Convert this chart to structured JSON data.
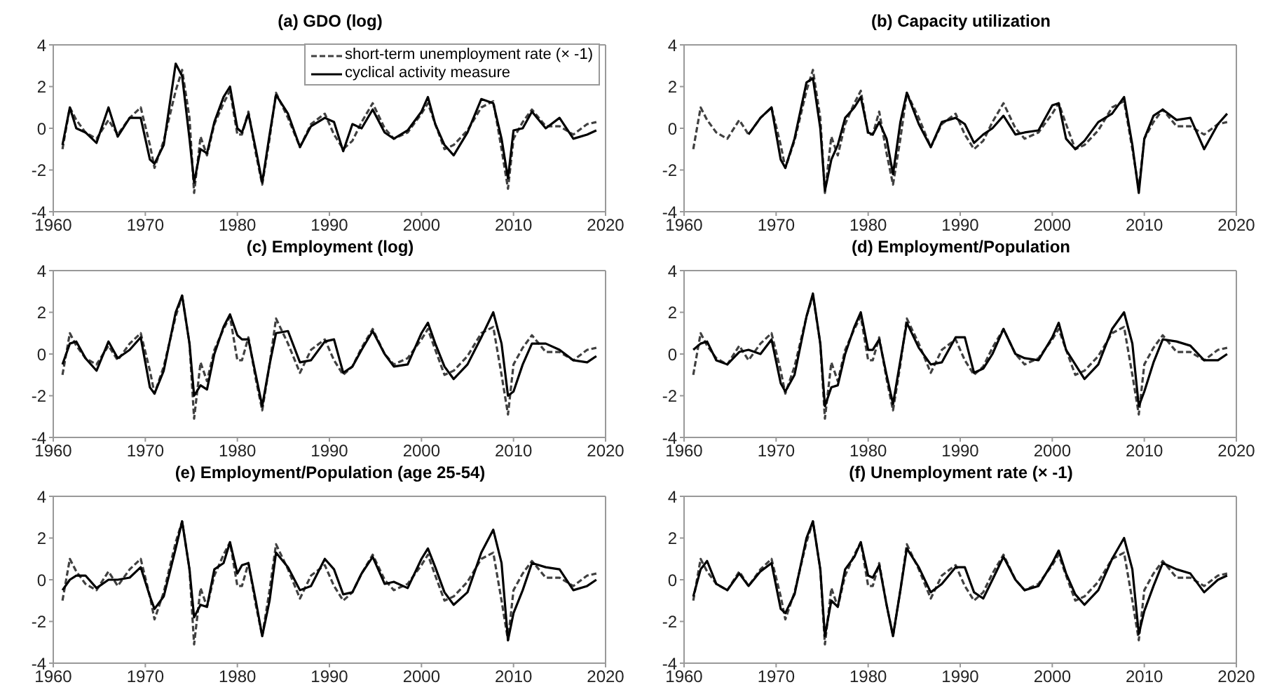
{
  "chart_data": [
    {
      "type": "line",
      "title": "(a) GDO (log)",
      "x": [
        1961,
        1961.8,
        1962.5,
        1963.5,
        1964.7,
        1966,
        1967,
        1968.3,
        1969.5,
        1970.5,
        1971,
        1972,
        1973.3,
        1974,
        1974.8,
        1975.3,
        1976,
        1976.7,
        1977.5,
        1978.5,
        1979.2,
        1980,
        1980.5,
        1981.2,
        1982,
        1982.7,
        1983.5,
        1984.2,
        1985.5,
        1986.8,
        1988,
        1989.5,
        1990.5,
        1991.5,
        1992.5,
        1993.5,
        1994.7,
        1996,
        1997,
        1998.5,
        2000,
        2000.7,
        2001.5,
        2002.5,
        2003.5,
        2005,
        2006.5,
        2007.8,
        2008.7,
        2009.4,
        2010,
        2011,
        2012,
        2013.5,
        2015,
        2016.5,
        2018,
        2019
      ],
      "xlim": [
        1960,
        2020
      ],
      "xticks": [
        1960,
        1970,
        1980,
        1990,
        2000,
        2010,
        2020
      ],
      "ylim": [
        -4,
        4
      ],
      "yticks": [
        -4,
        -2,
        0,
        2,
        4
      ],
      "legend": "top right",
      "series": [
        {
          "name": "short-term unemployment rate (× -1)",
          "color": "#404040",
          "line_style": "dashed",
          "values": [
            -1.0,
            1.0,
            0.4,
            -0.2,
            -0.5,
            0.4,
            -0.3,
            0.5,
            1.0,
            -0.8,
            -1.9,
            -0.6,
            1.8,
            2.8,
            0.5,
            -3.1,
            -0.4,
            -1.3,
            0.2,
            1.2,
            1.8,
            -0.3,
            -0.3,
            0.8,
            -1.2,
            -2.7,
            -0.5,
            1.7,
            0.5,
            -0.9,
            0.2,
            0.7,
            -0.3,
            -1.0,
            -0.6,
            0.3,
            1.2,
            0.0,
            -0.5,
            -0.2,
            0.7,
            1.2,
            0.2,
            -1.0,
            -0.8,
            -0.1,
            1.0,
            1.3,
            -1.0,
            -2.9,
            -0.5,
            0.3,
            0.9,
            0.1,
            0.1,
            -0.3,
            0.2,
            0.3
          ]
        },
        {
          "name": "cyclical activity measure",
          "color": "#000000",
          "line_style": "solid",
          "values": [
            -0.8,
            1.0,
            0.0,
            -0.2,
            -0.7,
            1.0,
            -0.4,
            0.5,
            0.5,
            -1.5,
            -1.7,
            -0.8,
            3.1,
            2.5,
            -0.5,
            -2.6,
            -1.0,
            -1.2,
            0.3,
            1.5,
            2.0,
            0.0,
            -0.2,
            0.7,
            -1.0,
            -2.6,
            -0.3,
            1.6,
            0.7,
            -0.9,
            0.1,
            0.5,
            0.3,
            -1.1,
            0.2,
            0.0,
            0.9,
            -0.2,
            -0.5,
            -0.1,
            0.8,
            1.5,
            0.2,
            -0.8,
            -1.3,
            -0.2,
            1.4,
            1.2,
            -0.5,
            -2.4,
            -0.1,
            0.0,
            0.8,
            0.0,
            0.5,
            -0.5,
            -0.3,
            -0.1
          ]
        }
      ]
    },
    {
      "type": "line",
      "title": "(b) Capacity utilization",
      "x": [
        1961,
        1961.8,
        1962.5,
        1963.5,
        1964.7,
        1966,
        1967,
        1968.3,
        1969.5,
        1970.5,
        1971,
        1972,
        1973.3,
        1974,
        1974.8,
        1975.3,
        1976,
        1976.7,
        1977.5,
        1978.5,
        1979.2,
        1980,
        1980.5,
        1981.2,
        1982,
        1982.7,
        1983.5,
        1984.2,
        1985.5,
        1986.8,
        1988,
        1989.5,
        1990.5,
        1991.5,
        1992.5,
        1993.5,
        1994.7,
        1996,
        1997,
        1998.5,
        2000,
        2000.7,
        2001.5,
        2002.5,
        2003.5,
        2005,
        2006.5,
        2007.8,
        2008.7,
        2009.4,
        2010,
        2011,
        2012,
        2013.5,
        2015,
        2016.5,
        2018,
        2019
      ],
      "xlim": [
        1960,
        2020
      ],
      "xticks": [
        1960,
        1970,
        1980,
        1990,
        2000,
        2010,
        2020
      ],
      "ylim": [
        -4,
        4
      ],
      "yticks": [
        -4,
        -2,
        0,
        2,
        4
      ],
      "series": [
        {
          "color": "#404040",
          "line_style": "dashed",
          "values": [
            -1.0,
            1.0,
            0.4,
            -0.2,
            -0.5,
            0.4,
            -0.3,
            0.5,
            1.0,
            -0.8,
            -1.9,
            -0.6,
            1.8,
            2.8,
            0.5,
            -3.1,
            -0.4,
            -1.3,
            0.2,
            1.2,
            1.8,
            -0.3,
            -0.3,
            0.8,
            -1.2,
            -2.7,
            -0.5,
            1.7,
            0.5,
            -0.9,
            0.2,
            0.7,
            -0.3,
            -1.0,
            -0.6,
            0.3,
            1.2,
            0.0,
            -0.5,
            -0.2,
            0.7,
            1.2,
            0.2,
            -1.0,
            -0.8,
            -0.1,
            1.0,
            1.3,
            -1.0,
            -2.9,
            -0.5,
            0.3,
            0.9,
            0.1,
            0.1,
            -0.3,
            0.2,
            0.3
          ]
        },
        {
          "color": "#000000",
          "line_style": "solid",
          "values": [
            null,
            null,
            null,
            null,
            null,
            null,
            -0.3,
            0.5,
            1.0,
            -1.5,
            -1.9,
            -0.5,
            2.2,
            2.4,
            0.0,
            -3.0,
            -1.5,
            -0.8,
            0.5,
            1.0,
            1.5,
            -0.2,
            -0.3,
            0.3,
            -0.5,
            -2.2,
            0.3,
            1.7,
            0.2,
            -0.9,
            0.3,
            0.5,
            0.2,
            -0.7,
            -0.3,
            0.0,
            0.6,
            -0.3,
            -0.2,
            -0.1,
            1.1,
            1.2,
            -0.5,
            -1.0,
            -0.6,
            0.3,
            0.7,
            1.5,
            -0.8,
            -3.1,
            -0.5,
            0.6,
            0.9,
            0.4,
            0.5,
            -1.0,
            0.2,
            0.7
          ]
        }
      ]
    },
    {
      "type": "line",
      "title": "(c) Employment (log)",
      "x": [
        1961,
        1961.8,
        1962.5,
        1963.5,
        1964.7,
        1966,
        1967,
        1968.3,
        1969.5,
        1970.5,
        1971,
        1972,
        1973.3,
        1974,
        1974.8,
        1975.3,
        1976,
        1976.7,
        1977.5,
        1978.5,
        1979.2,
        1980,
        1980.5,
        1981.2,
        1982,
        1982.7,
        1983.5,
        1984.2,
        1985.5,
        1986.8,
        1988,
        1989.5,
        1990.5,
        1991.5,
        1992.5,
        1993.5,
        1994.7,
        1996,
        1997,
        1998.5,
        2000,
        2000.7,
        2001.5,
        2002.5,
        2003.5,
        2005,
        2006.5,
        2007.8,
        2008.7,
        2009.4,
        2010,
        2011,
        2012,
        2013.5,
        2015,
        2016.5,
        2018,
        2019
      ],
      "xlim": [
        1960,
        2020
      ],
      "xticks": [
        1960,
        1970,
        1980,
        1990,
        2000,
        2010,
        2020
      ],
      "ylim": [
        -4,
        4
      ],
      "yticks": [
        -4,
        -2,
        0,
        2,
        4
      ],
      "series": [
        {
          "color": "#404040",
          "line_style": "dashed",
          "values": [
            -1.0,
            1.0,
            0.4,
            -0.2,
            -0.5,
            0.4,
            -0.3,
            0.5,
            1.0,
            -0.8,
            -1.9,
            -0.6,
            1.8,
            2.8,
            0.5,
            -3.1,
            -0.4,
            -1.3,
            0.2,
            1.2,
            1.8,
            -0.3,
            -0.3,
            0.8,
            -1.2,
            -2.7,
            -0.5,
            1.7,
            0.5,
            -0.9,
            0.2,
            0.7,
            -0.3,
            -1.0,
            -0.6,
            0.3,
            1.2,
            0.0,
            -0.5,
            -0.2,
            0.7,
            1.2,
            0.2,
            -1.0,
            -0.8,
            -0.1,
            1.0,
            1.3,
            -1.0,
            -2.9,
            -0.5,
            0.3,
            0.9,
            0.1,
            0.1,
            -0.3,
            0.2,
            0.3
          ]
        },
        {
          "color": "#000000",
          "line_style": "solid",
          "values": [
            -0.5,
            0.5,
            0.6,
            -0.2,
            -0.8,
            0.6,
            -0.2,
            0.2,
            0.8,
            -1.6,
            -1.9,
            -0.8,
            2.0,
            2.8,
            0.5,
            -2.0,
            -1.5,
            -1.7,
            0.0,
            1.3,
            1.9,
            0.9,
            0.7,
            0.7,
            -1.0,
            -2.5,
            -0.5,
            1.0,
            1.1,
            -0.4,
            -0.3,
            0.6,
            0.7,
            -0.9,
            -0.6,
            0.2,
            1.1,
            0.0,
            -0.6,
            -0.5,
            1.0,
            1.5,
            0.5,
            -0.6,
            -1.2,
            -0.5,
            0.8,
            2.0,
            0.5,
            -2.0,
            -1.8,
            -0.5,
            0.5,
            0.5,
            0.2,
            -0.3,
            -0.4,
            -0.1
          ]
        }
      ]
    },
    {
      "type": "line",
      "title": "(d) Employment/Population",
      "x": [
        1961,
        1961.8,
        1962.5,
        1963.5,
        1964.7,
        1966,
        1967,
        1968.3,
        1969.5,
        1970.5,
        1971,
        1972,
        1973.3,
        1974,
        1974.8,
        1975.3,
        1976,
        1976.7,
        1977.5,
        1978.5,
        1979.2,
        1980,
        1980.5,
        1981.2,
        1982,
        1982.7,
        1983.5,
        1984.2,
        1985.5,
        1986.8,
        1988,
        1989.5,
        1990.5,
        1991.5,
        1992.5,
        1993.5,
        1994.7,
        1996,
        1997,
        1998.5,
        2000,
        2000.7,
        2001.5,
        2002.5,
        2003.5,
        2005,
        2006.5,
        2007.8,
        2008.7,
        2009.4,
        2010,
        2011,
        2012,
        2013.5,
        2015,
        2016.5,
        2018,
        2019
      ],
      "xlim": [
        1960,
        2020
      ],
      "xticks": [
        1960,
        1970,
        1980,
        1990,
        2000,
        2010,
        2020
      ],
      "ylim": [
        -4,
        4
      ],
      "yticks": [
        -4,
        -2,
        0,
        2,
        4
      ],
      "series": [
        {
          "color": "#404040",
          "line_style": "dashed",
          "values": [
            -1.0,
            1.0,
            0.4,
            -0.2,
            -0.5,
            0.4,
            -0.3,
            0.5,
            1.0,
            -0.8,
            -1.9,
            -0.6,
            1.8,
            2.8,
            0.5,
            -3.1,
            -0.4,
            -1.3,
            0.2,
            1.2,
            1.8,
            -0.3,
            -0.3,
            0.8,
            -1.2,
            -2.7,
            -0.5,
            1.7,
            0.5,
            -0.9,
            0.2,
            0.7,
            -0.3,
            -1.0,
            -0.6,
            0.3,
            1.2,
            0.0,
            -0.5,
            -0.2,
            0.7,
            1.2,
            0.2,
            -1.0,
            -0.8,
            -0.1,
            1.0,
            1.3,
            -1.0,
            -2.9,
            -0.5,
            0.3,
            0.9,
            0.1,
            0.1,
            -0.3,
            0.2,
            0.3
          ]
        },
        {
          "color": "#000000",
          "line_style": "solid",
          "values": [
            0.2,
            0.5,
            0.6,
            -0.3,
            -0.5,
            0.1,
            0.2,
            0.0,
            0.7,
            -1.4,
            -1.8,
            -1.0,
            1.8,
            2.9,
            0.5,
            -2.5,
            -1.6,
            -1.5,
            0.0,
            1.3,
            2.0,
            0.2,
            0.2,
            0.7,
            -1.0,
            -2.4,
            -0.3,
            1.5,
            0.3,
            -0.5,
            -0.4,
            0.8,
            0.8,
            -0.9,
            -0.7,
            0.0,
            1.2,
            0.0,
            -0.2,
            -0.3,
            0.8,
            1.5,
            0.2,
            -0.5,
            -1.2,
            -0.5,
            1.2,
            2.0,
            0.5,
            -2.5,
            -1.8,
            -0.4,
            0.7,
            0.6,
            0.4,
            -0.3,
            -0.3,
            0.0
          ]
        }
      ]
    },
    {
      "type": "line",
      "title": "(e) Employment/Population (age 25-54)",
      "x": [
        1961,
        1961.8,
        1962.5,
        1963.5,
        1964.7,
        1966,
        1967,
        1968.3,
        1969.5,
        1970.5,
        1971,
        1972,
        1973.3,
        1974,
        1974.8,
        1975.3,
        1976,
        1976.7,
        1977.5,
        1978.5,
        1979.2,
        1980,
        1980.5,
        1981.2,
        1982,
        1982.7,
        1983.5,
        1984.2,
        1985.5,
        1986.8,
        1988,
        1989.5,
        1990.5,
        1991.5,
        1992.5,
        1993.5,
        1994.7,
        1996,
        1997,
        1998.5,
        2000,
        2000.7,
        2001.5,
        2002.5,
        2003.5,
        2005,
        2006.5,
        2007.8,
        2008.7,
        2009.4,
        2010,
        2011,
        2012,
        2013.5,
        2015,
        2016.5,
        2018,
        2019
      ],
      "xlim": [
        1960,
        2020
      ],
      "xticks": [
        1960,
        1970,
        1980,
        1990,
        2000,
        2010,
        2020
      ],
      "ylim": [
        -4,
        4
      ],
      "yticks": [
        -4,
        -2,
        0,
        2,
        4
      ],
      "series": [
        {
          "color": "#404040",
          "line_style": "dashed",
          "values": [
            -1.0,
            1.0,
            0.4,
            -0.2,
            -0.5,
            0.4,
            -0.3,
            0.5,
            1.0,
            -0.8,
            -1.9,
            -0.6,
            1.8,
            2.8,
            0.5,
            -3.1,
            -0.4,
            -1.3,
            0.2,
            1.2,
            1.8,
            -0.3,
            -0.3,
            0.8,
            -1.2,
            -2.7,
            -0.5,
            1.7,
            0.5,
            -0.9,
            0.2,
            0.7,
            -0.3,
            -1.0,
            -0.6,
            0.3,
            1.2,
            0.0,
            -0.5,
            -0.2,
            0.7,
            1.2,
            0.2,
            -1.0,
            -0.8,
            -0.1,
            1.0,
            1.3,
            -1.0,
            -2.9,
            -0.5,
            0.3,
            0.9,
            0.1,
            0.1,
            -0.3,
            0.2,
            0.3
          ]
        },
        {
          "color": "#000000",
          "line_style": "solid",
          "values": [
            -0.5,
            0.0,
            0.2,
            0.2,
            -0.4,
            0.0,
            0.0,
            0.1,
            0.6,
            -0.8,
            -1.4,
            -0.8,
            1.5,
            2.8,
            0.5,
            -1.8,
            -1.2,
            -1.3,
            0.5,
            0.8,
            1.8,
            0.3,
            0.7,
            0.8,
            -1.0,
            -2.7,
            -1.0,
            1.3,
            0.6,
            -0.5,
            -0.3,
            1.0,
            0.5,
            -0.7,
            -0.6,
            0.3,
            1.1,
            -0.2,
            -0.1,
            -0.4,
            1.0,
            1.5,
            0.6,
            -0.6,
            -1.2,
            -0.6,
            1.3,
            2.4,
            0.8,
            -2.9,
            -1.6,
            -0.5,
            0.8,
            0.6,
            0.5,
            -0.5,
            -0.3,
            0.0
          ]
        }
      ]
    },
    {
      "type": "line",
      "title": "(f) Unemployment rate (× -1)",
      "x": [
        1961,
        1961.8,
        1962.5,
        1963.5,
        1964.7,
        1966,
        1967,
        1968.3,
        1969.5,
        1970.5,
        1971,
        1972,
        1973.3,
        1974,
        1974.8,
        1975.3,
        1976,
        1976.7,
        1977.5,
        1978.5,
        1979.2,
        1980,
        1980.5,
        1981.2,
        1982,
        1982.7,
        1983.5,
        1984.2,
        1985.5,
        1986.8,
        1988,
        1989.5,
        1990.5,
        1991.5,
        1992.5,
        1993.5,
        1994.7,
        1996,
        1997,
        1998.5,
        2000,
        2000.7,
        2001.5,
        2002.5,
        2003.5,
        2005,
        2006.5,
        2007.8,
        2008.7,
        2009.4,
        2010,
        2011,
        2012,
        2013.5,
        2015,
        2016.5,
        2018,
        2019
      ],
      "xlim": [
        1960,
        2020
      ],
      "xticks": [
        1960,
        1970,
        1980,
        1990,
        2000,
        2010,
        2020
      ],
      "ylim": [
        -4,
        4
      ],
      "yticks": [
        -4,
        -2,
        0,
        2,
        4
      ],
      "series": [
        {
          "color": "#404040",
          "line_style": "dashed",
          "values": [
            -1.0,
            1.0,
            0.4,
            -0.2,
            -0.5,
            0.4,
            -0.3,
            0.5,
            1.0,
            -0.8,
            -1.9,
            -0.6,
            1.8,
            2.8,
            0.5,
            -3.1,
            -0.4,
            -1.3,
            0.2,
            1.2,
            1.8,
            -0.3,
            -0.3,
            0.8,
            -1.2,
            -2.7,
            -0.5,
            1.7,
            0.5,
            -0.9,
            0.2,
            0.7,
            -0.3,
            -1.0,
            -0.6,
            0.3,
            1.2,
            0.0,
            -0.5,
            -0.2,
            0.7,
            1.2,
            0.2,
            -1.0,
            -0.8,
            -0.1,
            1.0,
            1.3,
            -1.0,
            -2.9,
            -0.5,
            0.3,
            0.9,
            0.1,
            0.1,
            -0.3,
            0.2,
            0.3
          ]
        },
        {
          "color": "#000000",
          "line_style": "solid",
          "values": [
            -0.8,
            0.5,
            0.9,
            -0.2,
            -0.5,
            0.3,
            -0.3,
            0.4,
            0.8,
            -1.4,
            -1.6,
            -0.7,
            2.0,
            2.8,
            0.5,
            -2.7,
            -1.0,
            -1.3,
            0.5,
            1.1,
            1.8,
            0.2,
            0.1,
            0.7,
            -1.2,
            -2.7,
            -0.5,
            1.5,
            0.6,
            -0.6,
            -0.2,
            0.6,
            0.6,
            -0.6,
            -0.9,
            0.0,
            1.1,
            0.0,
            -0.5,
            -0.3,
            0.8,
            1.4,
            0.3,
            -0.7,
            -1.2,
            -0.5,
            1.0,
            2.0,
            0.5,
            -2.6,
            -1.5,
            -0.3,
            0.8,
            0.5,
            0.3,
            -0.6,
            0.0,
            0.2
          ]
        }
      ]
    }
  ]
}
